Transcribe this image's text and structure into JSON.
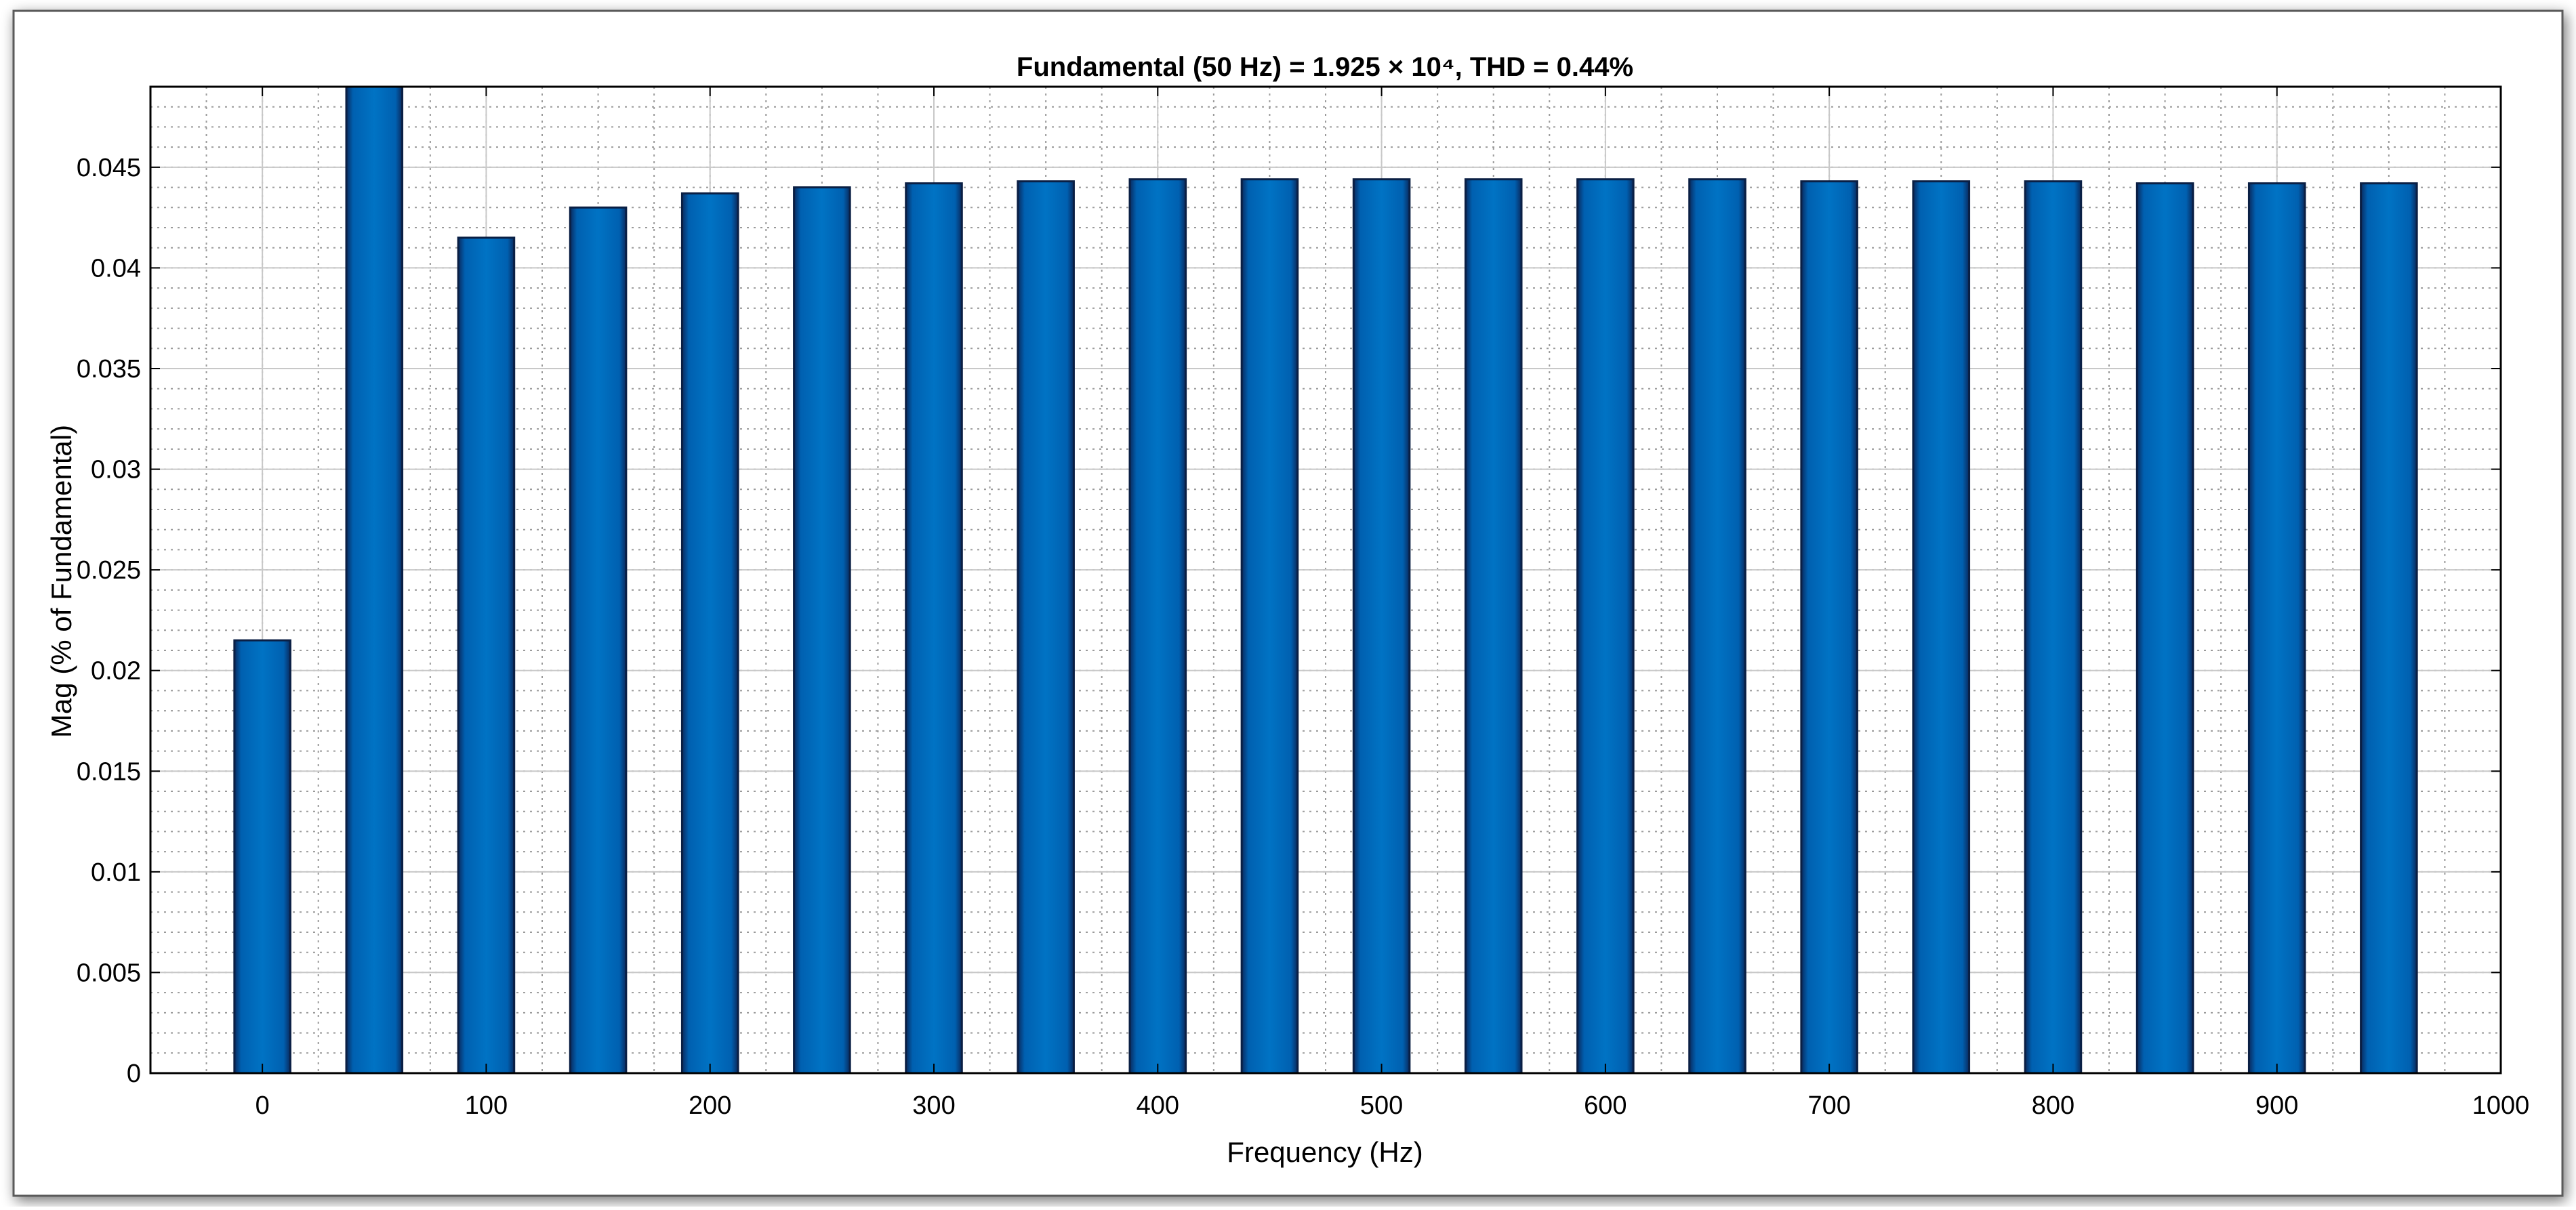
{
  "chart_data": {
    "type": "bar",
    "title": "Fundamental (50 Hz) = 1.925 × 10⁴, THD = 0.44%",
    "xlabel": "Frequency (Hz)",
    "ylabel": "Mag (% of Fundamental)",
    "xlim": [
      -50,
      1000
    ],
    "ylim": [
      0,
      0.049
    ],
    "x_tick_values": [
      0,
      100,
      200,
      300,
      400,
      500,
      600,
      700,
      800,
      900,
      1000
    ],
    "x_tick_labels": [
      "0",
      "100",
      "200",
      "300",
      "400",
      "500",
      "600",
      "700",
      "800",
      "900",
      "1000"
    ],
    "y_tick_values": [
      0,
      0.005,
      0.01,
      0.015,
      0.02,
      0.025,
      0.03,
      0.035,
      0.04,
      0.045
    ],
    "y_tick_labels": [
      "0",
      "0.005",
      "0.01",
      "0.015",
      "0.02",
      "0.025",
      "0.03",
      "0.035",
      "0.04",
      "0.045"
    ],
    "grid": true,
    "minor_grid": true,
    "bar_color": "#0070C0",
    "bar_edge_color": "#0A1F44",
    "x": [
      0,
      50,
      100,
      150,
      200,
      250,
      300,
      350,
      400,
      450,
      500,
      550,
      600,
      650,
      700,
      750,
      800,
      850,
      900,
      950
    ],
    "values": [
      0.0215,
      0.049,
      0.0415,
      0.043,
      0.0437,
      0.044,
      0.0442,
      0.0443,
      0.0444,
      0.0444,
      0.0444,
      0.0444,
      0.0444,
      0.0444,
      0.0443,
      0.0443,
      0.0443,
      0.0442,
      0.0442,
      0.0442
    ]
  }
}
